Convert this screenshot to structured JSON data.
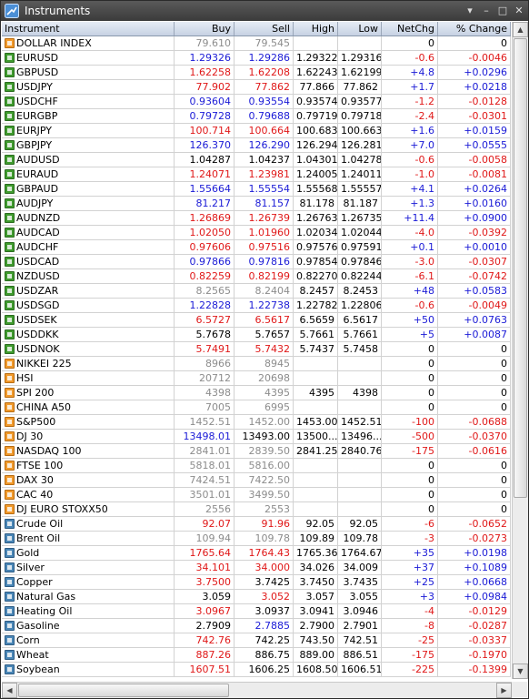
{
  "window": {
    "title": "Instruments",
    "controls": [
      "▾",
      "–",
      "□",
      "✕"
    ]
  },
  "columns": [
    "Instrument",
    "Buy",
    "Sell",
    "High",
    "Low",
    "NetChg",
    "% Change"
  ],
  "colors": {
    "blue": "#1a1ad6",
    "red": "#e01818",
    "gray": "#8c8c8c",
    "black": "#000000"
  },
  "rows": [
    {
      "name": "DOLLAR INDEX",
      "type": "idx",
      "buy": "79.610",
      "sell": "79.545",
      "high": "",
      "low": "",
      "net": "0",
      "pct": "0",
      "bc": "gray",
      "sc": "gray",
      "nc": "black"
    },
    {
      "name": "EURUSD",
      "type": "fx",
      "buy": "1.29326",
      "sell": "1.29286",
      "high": "1.29322",
      "low": "1.29316",
      "net": "-0.6",
      "pct": "-0.0046",
      "bc": "blue",
      "sc": "blue",
      "nc": "red"
    },
    {
      "name": "GBPUSD",
      "type": "fx",
      "buy": "1.62258",
      "sell": "1.62208",
      "high": "1.62243",
      "low": "1.62199",
      "net": "+4.8",
      "pct": "+0.0296",
      "bc": "red",
      "sc": "red",
      "nc": "blue"
    },
    {
      "name": "USDJPY",
      "type": "fx",
      "buy": "77.902",
      "sell": "77.862",
      "high": "77.866",
      "low": "77.862",
      "net": "+1.7",
      "pct": "+0.0218",
      "bc": "red",
      "sc": "red",
      "nc": "blue"
    },
    {
      "name": "USDCHF",
      "type": "fx",
      "buy": "0.93604",
      "sell": "0.93554",
      "high": "0.93574",
      "low": "0.93577",
      "net": "-1.2",
      "pct": "-0.0128",
      "bc": "blue",
      "sc": "blue",
      "nc": "red"
    },
    {
      "name": "EURGBP",
      "type": "fx",
      "buy": "0.79728",
      "sell": "0.79688",
      "high": "0.79719",
      "low": "0.79718",
      "net": "-2.4",
      "pct": "-0.0301",
      "bc": "blue",
      "sc": "blue",
      "nc": "red"
    },
    {
      "name": "EURJPY",
      "type": "fx",
      "buy": "100.714",
      "sell": "100.664",
      "high": "100.683",
      "low": "100.663",
      "net": "+1.6",
      "pct": "+0.0159",
      "bc": "red",
      "sc": "red",
      "nc": "blue"
    },
    {
      "name": "GBPJPY",
      "type": "fx",
      "buy": "126.370",
      "sell": "126.290",
      "high": "126.294",
      "low": "126.281",
      "net": "+7.0",
      "pct": "+0.0555",
      "bc": "blue",
      "sc": "blue",
      "nc": "blue"
    },
    {
      "name": "AUDUSD",
      "type": "fx",
      "buy": "1.04287",
      "sell": "1.04237",
      "high": "1.04301",
      "low": "1.04278",
      "net": "-0.6",
      "pct": "-0.0058",
      "bc": "black",
      "sc": "black",
      "nc": "red"
    },
    {
      "name": "EURAUD",
      "type": "fx",
      "buy": "1.24071",
      "sell": "1.23981",
      "high": "1.24005",
      "low": "1.24011",
      "net": "-1.0",
      "pct": "-0.0081",
      "bc": "red",
      "sc": "red",
      "nc": "red"
    },
    {
      "name": "GBPAUD",
      "type": "fx",
      "buy": "1.55664",
      "sell": "1.55554",
      "high": "1.55568",
      "low": "1.55557",
      "net": "+4.1",
      "pct": "+0.0264",
      "bc": "blue",
      "sc": "blue",
      "nc": "blue"
    },
    {
      "name": "AUDJPY",
      "type": "fx",
      "buy": "81.217",
      "sell": "81.157",
      "high": "81.178",
      "low": "81.187",
      "net": "+1.3",
      "pct": "+0.0160",
      "bc": "blue",
      "sc": "blue",
      "nc": "blue"
    },
    {
      "name": "AUDNZD",
      "type": "fx",
      "buy": "1.26869",
      "sell": "1.26739",
      "high": "1.26763",
      "low": "1.26735",
      "net": "+11.4",
      "pct": "+0.0900",
      "bc": "red",
      "sc": "red",
      "nc": "blue"
    },
    {
      "name": "AUDCAD",
      "type": "fx",
      "buy": "1.02050",
      "sell": "1.01960",
      "high": "1.02034",
      "low": "1.02044",
      "net": "-4.0",
      "pct": "-0.0392",
      "bc": "red",
      "sc": "red",
      "nc": "red"
    },
    {
      "name": "AUDCHF",
      "type": "fx",
      "buy": "0.97606",
      "sell": "0.97516",
      "high": "0.97576",
      "low": "0.97591",
      "net": "+0.1",
      "pct": "+0.0010",
      "bc": "red",
      "sc": "red",
      "nc": "blue"
    },
    {
      "name": "USDCAD",
      "type": "fx",
      "buy": "0.97866",
      "sell": "0.97816",
      "high": "0.97854",
      "low": "0.97846",
      "net": "-3.0",
      "pct": "-0.0307",
      "bc": "blue",
      "sc": "blue",
      "nc": "red"
    },
    {
      "name": "NZDUSD",
      "type": "fx",
      "buy": "0.82259",
      "sell": "0.82199",
      "high": "0.82270",
      "low": "0.82244",
      "net": "-6.1",
      "pct": "-0.0742",
      "bc": "red",
      "sc": "red",
      "nc": "red"
    },
    {
      "name": "USDZAR",
      "type": "fx",
      "buy": "8.2565",
      "sell": "8.2404",
      "high": "8.2457",
      "low": "8.2453",
      "net": "+48",
      "pct": "+0.0583",
      "bc": "gray",
      "sc": "gray",
      "nc": "blue"
    },
    {
      "name": "USDSGD",
      "type": "fx",
      "buy": "1.22828",
      "sell": "1.22738",
      "high": "1.22782",
      "low": "1.22806",
      "net": "-0.6",
      "pct": "-0.0049",
      "bc": "blue",
      "sc": "blue",
      "nc": "red"
    },
    {
      "name": "USDSEK",
      "type": "fx",
      "buy": "6.5727",
      "sell": "6.5617",
      "high": "6.5659",
      "low": "6.5617",
      "net": "+50",
      "pct": "+0.0763",
      "bc": "red",
      "sc": "red",
      "nc": "blue"
    },
    {
      "name": "USDDKK",
      "type": "fx",
      "buy": "5.7678",
      "sell": "5.7657",
      "high": "5.7661",
      "low": "5.7661",
      "net": "+5",
      "pct": "+0.0087",
      "bc": "black",
      "sc": "black",
      "nc": "blue"
    },
    {
      "name": "USDNOK",
      "type": "fx",
      "buy": "5.7491",
      "sell": "5.7432",
      "high": "5.7437",
      "low": "5.7458",
      "net": "0",
      "pct": "0",
      "bc": "red",
      "sc": "red",
      "nc": "black"
    },
    {
      "name": "NIKKEI 225",
      "type": "idx",
      "buy": "8966",
      "sell": "8945",
      "high": "",
      "low": "",
      "net": "0",
      "pct": "0",
      "bc": "gray",
      "sc": "gray",
      "nc": "black"
    },
    {
      "name": "HSI",
      "type": "idx",
      "buy": "20712",
      "sell": "20698",
      "high": "",
      "low": "",
      "net": "0",
      "pct": "0",
      "bc": "gray",
      "sc": "gray",
      "nc": "black"
    },
    {
      "name": "SPI 200",
      "type": "idx",
      "buy": "4398",
      "sell": "4395",
      "high": "4395",
      "low": "4398",
      "net": "0",
      "pct": "0",
      "bc": "gray",
      "sc": "gray",
      "nc": "black"
    },
    {
      "name": "CHINA A50",
      "type": "idx",
      "buy": "7005",
      "sell": "6995",
      "high": "",
      "low": "",
      "net": "0",
      "pct": "0",
      "bc": "gray",
      "sc": "gray",
      "nc": "black"
    },
    {
      "name": "S&P500",
      "type": "idx",
      "buy": "1452.51",
      "sell": "1452.00",
      "high": "1453.00",
      "low": "1452.51",
      "net": "-100",
      "pct": "-0.0688",
      "bc": "gray",
      "sc": "gray",
      "nc": "red"
    },
    {
      "name": "DJ 30",
      "type": "idx",
      "buy": "13498.01",
      "sell": "13493.00",
      "high": "13500...",
      "low": "13496...",
      "net": "-500",
      "pct": "-0.0370",
      "bc": "blue",
      "sc": "black",
      "nc": "red"
    },
    {
      "name": "NASDAQ 100",
      "type": "idx",
      "buy": "2841.01",
      "sell": "2839.50",
      "high": "2841.25",
      "low": "2840.76",
      "net": "-175",
      "pct": "-0.0616",
      "bc": "gray",
      "sc": "gray",
      "nc": "red"
    },
    {
      "name": "FTSE 100",
      "type": "idx",
      "buy": "5818.01",
      "sell": "5816.00",
      "high": "",
      "low": "",
      "net": "0",
      "pct": "0",
      "bc": "gray",
      "sc": "gray",
      "nc": "black"
    },
    {
      "name": "DAX 30",
      "type": "idx",
      "buy": "7424.51",
      "sell": "7422.50",
      "high": "",
      "low": "",
      "net": "0",
      "pct": "0",
      "bc": "gray",
      "sc": "gray",
      "nc": "black"
    },
    {
      "name": "CAC 40",
      "type": "idx",
      "buy": "3501.01",
      "sell": "3499.50",
      "high": "",
      "low": "",
      "net": "0",
      "pct": "0",
      "bc": "gray",
      "sc": "gray",
      "nc": "black"
    },
    {
      "name": "DJ EURO STOXX50",
      "type": "idx",
      "buy": "2556",
      "sell": "2553",
      "high": "",
      "low": "",
      "net": "0",
      "pct": "0",
      "bc": "gray",
      "sc": "gray",
      "nc": "black"
    },
    {
      "name": "Crude Oil",
      "type": "cmd",
      "buy": "92.07",
      "sell": "91.96",
      "high": "92.05",
      "low": "92.05",
      "net": "-6",
      "pct": "-0.0652",
      "bc": "red",
      "sc": "red",
      "nc": "red"
    },
    {
      "name": "Brent Oil",
      "type": "cmd",
      "buy": "109.94",
      "sell": "109.78",
      "high": "109.89",
      "low": "109.78",
      "net": "-3",
      "pct": "-0.0273",
      "bc": "gray",
      "sc": "gray",
      "nc": "red"
    },
    {
      "name": "Gold",
      "type": "cmd",
      "buy": "1765.64",
      "sell": "1764.43",
      "high": "1765.36",
      "low": "1764.67",
      "net": "+35",
      "pct": "+0.0198",
      "bc": "red",
      "sc": "red",
      "nc": "blue"
    },
    {
      "name": "Silver",
      "type": "cmd",
      "buy": "34.101",
      "sell": "34.000",
      "high": "34.026",
      "low": "34.009",
      "net": "+37",
      "pct": "+0.1089",
      "bc": "red",
      "sc": "red",
      "nc": "blue"
    },
    {
      "name": "Copper",
      "type": "cmd",
      "buy": "3.7500",
      "sell": "3.7425",
      "high": "3.7450",
      "low": "3.7435",
      "net": "+25",
      "pct": "+0.0668",
      "bc": "red",
      "sc": "black",
      "nc": "blue"
    },
    {
      "name": "Natural Gas",
      "type": "cmd",
      "buy": "3.059",
      "sell": "3.052",
      "high": "3.057",
      "low": "3.055",
      "net": "+3",
      "pct": "+0.0984",
      "bc": "black",
      "sc": "red",
      "nc": "blue"
    },
    {
      "name": "Heating Oil",
      "type": "cmd",
      "buy": "3.0967",
      "sell": "3.0937",
      "high": "3.0941",
      "low": "3.0946",
      "net": "-4",
      "pct": "-0.0129",
      "bc": "red",
      "sc": "black",
      "nc": "red"
    },
    {
      "name": "Gasoline",
      "type": "cmd",
      "buy": "2.7909",
      "sell": "2.7885",
      "high": "2.7900",
      "low": "2.7901",
      "net": "-8",
      "pct": "-0.0287",
      "bc": "black",
      "sc": "blue",
      "nc": "red"
    },
    {
      "name": "Corn",
      "type": "cmd",
      "buy": "742.76",
      "sell": "742.25",
      "high": "743.50",
      "low": "742.51",
      "net": "-25",
      "pct": "-0.0337",
      "bc": "red",
      "sc": "black",
      "nc": "red"
    },
    {
      "name": "Wheat",
      "type": "cmd",
      "buy": "887.26",
      "sell": "886.75",
      "high": "889.00",
      "low": "886.51",
      "net": "-175",
      "pct": "-0.1970",
      "bc": "red",
      "sc": "black",
      "nc": "red"
    },
    {
      "name": "Soybean",
      "type": "cmd",
      "buy": "1607.51",
      "sell": "1606.25",
      "high": "1608.50",
      "low": "1606.51",
      "net": "-225",
      "pct": "-0.1399",
      "bc": "red",
      "sc": "black",
      "nc": "red"
    }
  ]
}
